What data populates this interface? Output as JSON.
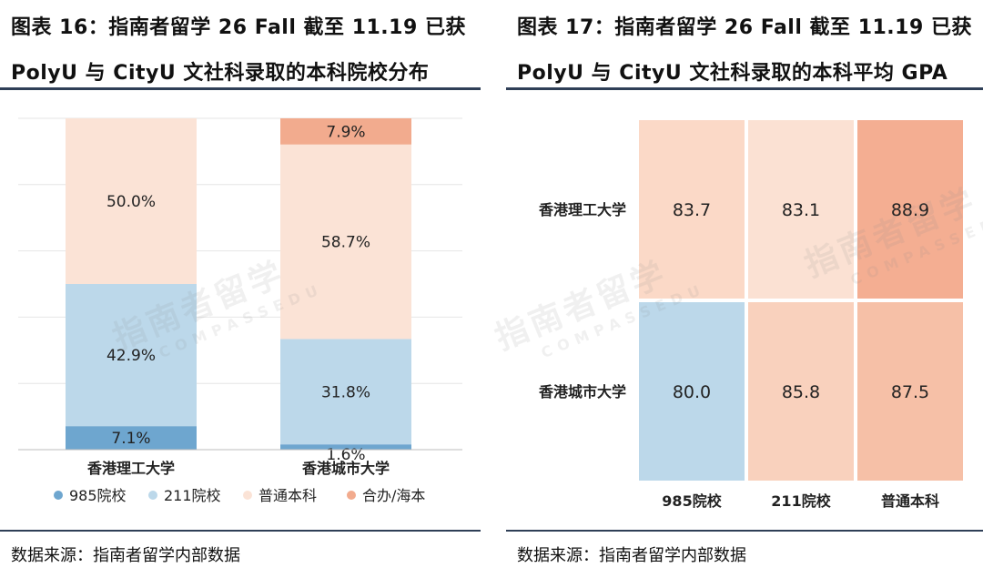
{
  "left_panel": {
    "title_line1": "图表 16：指南者留学 26 Fall 截至 11.19 已获",
    "title_line2": "PolyU 与 CityU 文社科录取的本科院校分布",
    "source": "数据来源：指南者留学内部数据"
  },
  "right_panel": {
    "title_line1": "图表 17：指南者留学 26 Fall 截至 11.19 已获",
    "title_line2": "PolyU 与 CityU 文社科录取的本科平均 GPA",
    "source": "数据来源：指南者留学内部数据"
  },
  "watermark": {
    "cn": "指南者留学",
    "en": "COMPASSEDU"
  },
  "chart_data": [
    {
      "type": "bar",
      "stacked": true,
      "categories": [
        "香港理工大学",
        "香港城市大学"
      ],
      "series": [
        {
          "name": "985院校",
          "values": [
            7.1,
            1.6
          ],
          "labels": [
            "7.1%",
            "1.6%"
          ],
          "color": "#6ea6cf"
        },
        {
          "name": "211院校",
          "values": [
            42.9,
            31.8
          ],
          "labels": [
            "42.9%",
            "31.8%"
          ],
          "color": "#bcd8ea"
        },
        {
          "name": "普通本科",
          "values": [
            50.0,
            58.7
          ],
          "labels": [
            "50.0%",
            "58.7%"
          ],
          "color": "#fbe3d6"
        },
        {
          "name": "合办/海本",
          "values": [
            0,
            7.9
          ],
          "labels": [
            "",
            "7.9%"
          ],
          "color": "#f2ab8e"
        }
      ],
      "ylim": [
        0,
        100
      ],
      "grid": true,
      "legend": "bottom"
    },
    {
      "type": "heatmap",
      "rows": [
        "香港理工大学",
        "香港城市大学"
      ],
      "columns": [
        "985院校",
        "211院校",
        "普通本科"
      ],
      "values": [
        [
          83.7,
          83.1,
          88.9
        ],
        [
          80.0,
          85.8,
          87.5
        ]
      ],
      "labels": [
        [
          "83.7",
          "83.1",
          "88.9"
        ],
        [
          "80.0",
          "85.8",
          "87.5"
        ]
      ],
      "colors": [
        [
          "#fbd9c7",
          "#fbe1d3",
          "#f4ae92"
        ],
        [
          "#bcd8ea",
          "#f9d1bd",
          "#f6c0a7"
        ]
      ]
    }
  ]
}
